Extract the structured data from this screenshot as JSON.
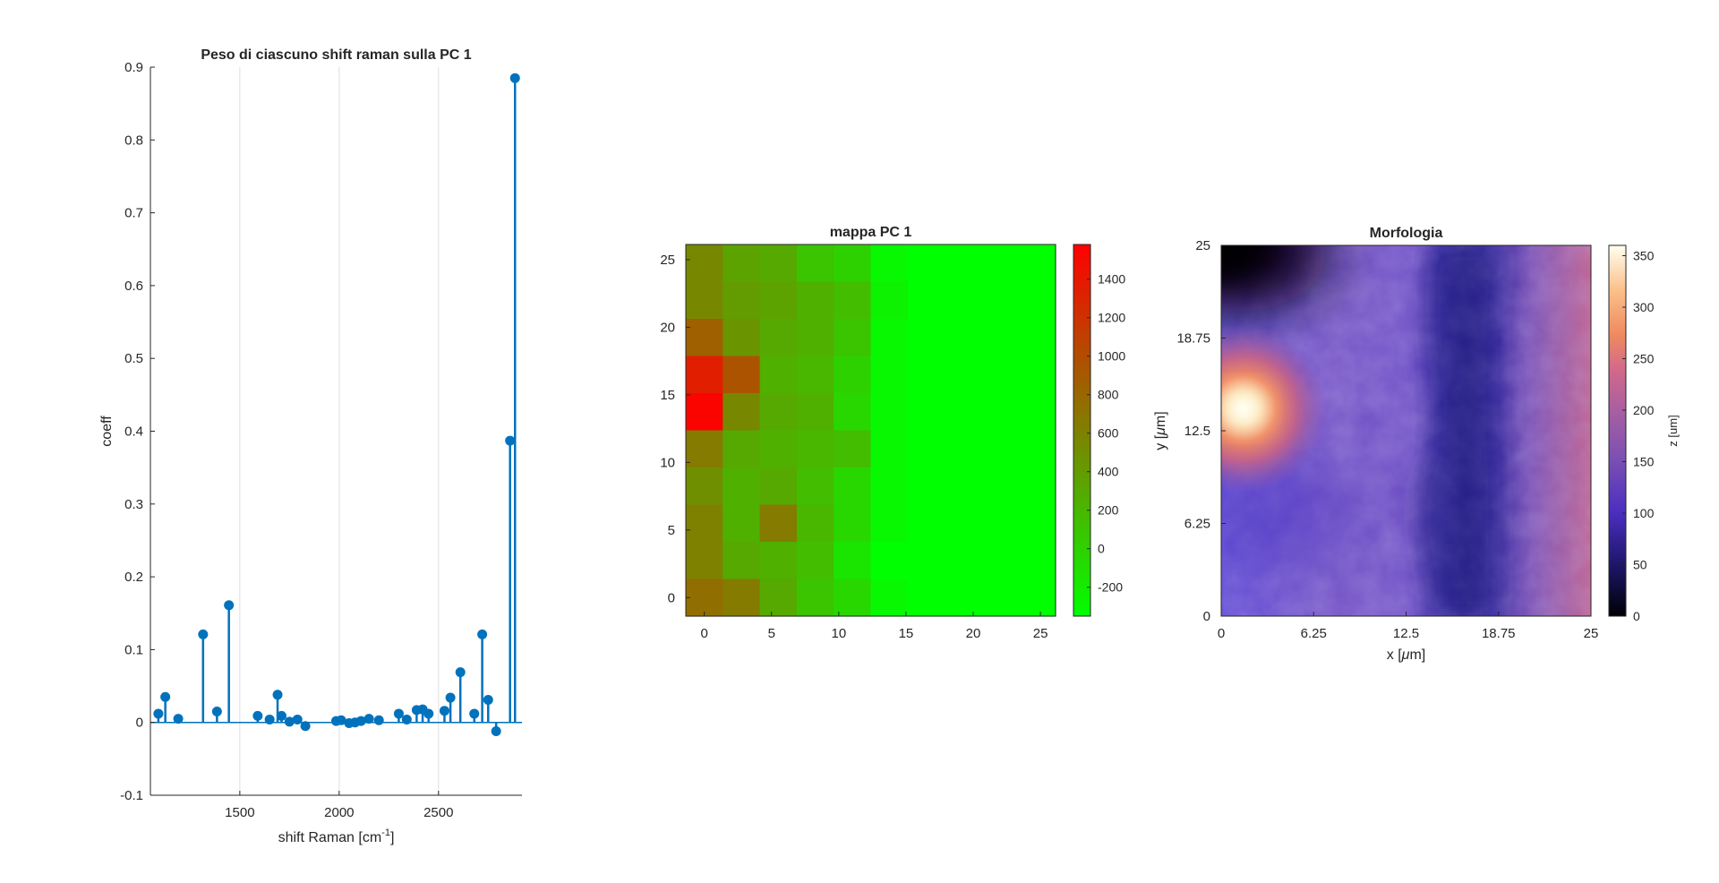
{
  "colors": {
    "stem": "#0072BD",
    "axis": "#262626",
    "grid": "#dfdfdf",
    "text": "#262626",
    "pca_map": [
      "#00ff00",
      "#ff0000"
    ],
    "morph_map": [
      "#000004",
      "#1b1464",
      "#4a2fc0",
      "#7a4fb3",
      "#a65fa3",
      "#d0688a",
      "#f08a60",
      "#fbc08a",
      "#fffff0"
    ]
  },
  "chart_data": [
    {
      "type": "stem",
      "title": "Peso di ciascuno shift raman sulla PC 1",
      "xlabel": "shift Raman [cm",
      "xlabel_sup": "-1",
      "xlabel_end": "]",
      "ylabel": "coeff",
      "xlim": [
        1050,
        2920
      ],
      "ylim": [
        -0.1,
        0.9
      ],
      "xticks": [
        "1500",
        "2000",
        "2500"
      ],
      "xtick_values": [
        1500,
        2000,
        2500
      ],
      "yticks": [
        "-0.1",
        "0",
        "0.1",
        "0.2",
        "0.3",
        "0.4",
        "0.5",
        "0.6",
        "0.7",
        "0.8",
        "0.9"
      ],
      "ytick_values": [
        -0.1,
        0,
        0.1,
        0.2,
        0.3,
        0.4,
        0.5,
        0.6,
        0.7,
        0.8,
        0.9
      ],
      "grid": "x-only",
      "x": [
        1090,
        1125,
        1190,
        1315,
        1385,
        1445,
        1590,
        1650,
        1690,
        1710,
        1750,
        1790,
        1830,
        1985,
        2010,
        2050,
        2080,
        2110,
        2150,
        2200,
        2300,
        2340,
        2390,
        2420,
        2450,
        2530,
        2560,
        2610,
        2680,
        2720,
        2750,
        2790,
        2860,
        2885
      ],
      "values": [
        0.012,
        0.035,
        0.005,
        0.121,
        0.015,
        0.161,
        0.009,
        0.004,
        0.038,
        0.009,
        0.001,
        0.004,
        -0.005,
        0.002,
        0.003,
        -0.001,
        0.0,
        0.002,
        0.005,
        0.003,
        0.012,
        0.004,
        0.017,
        0.018,
        0.012,
        0.016,
        0.034,
        0.069,
        0.012,
        0.121,
        0.031,
        -0.012,
        0.387,
        0.885
      ]
    },
    {
      "type": "heatmap",
      "title": "mappa PC 1",
      "xticks": [
        "0",
        "5",
        "10",
        "15",
        "20",
        "25"
      ],
      "xtick_values": [
        0,
        5,
        10,
        15,
        20,
        25
      ],
      "yticks": [
        "0",
        "5",
        "10",
        "15",
        "20",
        "25"
      ],
      "ytick_values": [
        0,
        5,
        10,
        15,
        20,
        25
      ],
      "xlim": [
        -1.375,
        26.125
      ],
      "ylim": [
        -1.375,
        26.125
      ],
      "x_centers": [
        0,
        2.75,
        5.5,
        8.25,
        11,
        13.75,
        16.5,
        19.25,
        22,
        24.75
      ],
      "y_centers": [
        0,
        2.75,
        5.5,
        8.25,
        11,
        13.75,
        16.5,
        19.25,
        22,
        24.75
      ],
      "values_rows_top_to_bottom": [
        [
          550,
          350,
          300,
          100,
          0,
          -300,
          -350,
          -350,
          -350,
          -350
        ],
        [
          550,
          400,
          350,
          250,
          150,
          -250,
          -350,
          -350,
          -350,
          -350
        ],
        [
          850,
          450,
          300,
          250,
          100,
          -300,
          -350,
          -350,
          -350,
          -350
        ],
        [
          1350,
          950,
          250,
          200,
          0,
          -300,
          -350,
          -350,
          -350,
          -350
        ],
        [
          1550,
          550,
          300,
          250,
          -50,
          -300,
          -350,
          -350,
          -350,
          -350
        ],
        [
          650,
          300,
          250,
          200,
          150,
          -300,
          -350,
          -350,
          -350,
          -350
        ],
        [
          500,
          250,
          300,
          150,
          -50,
          -300,
          -350,
          -350,
          -350,
          -350
        ],
        [
          600,
          250,
          650,
          200,
          -50,
          -300,
          -350,
          -350,
          -350,
          -350
        ],
        [
          600,
          300,
          250,
          150,
          -150,
          -350,
          -350,
          -350,
          -350,
          -350
        ],
        [
          750,
          650,
          300,
          100,
          -50,
          -300,
          -350,
          -350,
          -350,
          -350
        ]
      ],
      "clim": [
        -350,
        1580
      ],
      "colorbar_ticks": [
        "-200",
        "0",
        "200",
        "400",
        "600",
        "800",
        "1000",
        "1200",
        "1400"
      ],
      "colorbar_tick_values": [
        -200,
        0,
        200,
        400,
        600,
        800,
        1000,
        1200,
        1400
      ]
    },
    {
      "type": "heatmap",
      "title": "Morfologia",
      "xlabel": "x [",
      "xlabel_mu": "μ",
      "xlabel_end": "m]",
      "ylabel": "y [",
      "ylabel_mu": "μ",
      "ylabel_end": "m]",
      "xticks": [
        "0",
        "6.25",
        "12.5",
        "18.75",
        "25"
      ],
      "xtick_values": [
        0,
        6.25,
        12.5,
        18.75,
        25
      ],
      "yticks": [
        "0",
        "6.25",
        "12.5",
        "18.75",
        "25"
      ],
      "ytick_values": [
        0,
        6.25,
        12.5,
        18.75,
        25
      ],
      "xlim": [
        0,
        25
      ],
      "ylim": [
        0,
        25
      ],
      "clim": [
        0,
        360
      ],
      "colorbar_label": "z [um]",
      "colorbar_ticks": [
        "0",
        "50",
        "100",
        "150",
        "200",
        "250",
        "300",
        "350"
      ],
      "colorbar_tick_values": [
        0,
        50,
        100,
        150,
        200,
        250,
        300,
        350
      ],
      "features": {
        "bright_peak": {
          "x": 1.5,
          "y": 14,
          "z": 355
        },
        "valley_x": 15.5,
        "right_ridge_z": 200
      }
    }
  ]
}
